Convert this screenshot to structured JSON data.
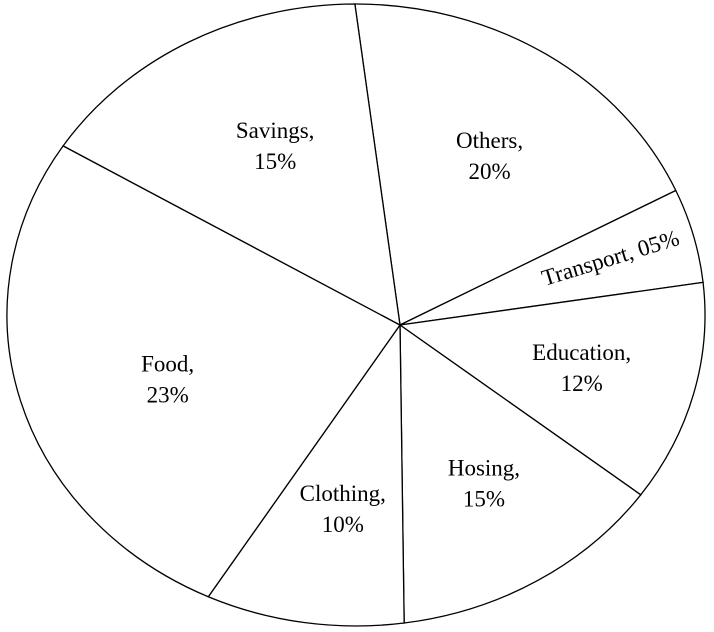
{
  "chart_data": {
    "type": "pie",
    "categories": [
      "Others,",
      "Transport,",
      "Education,",
      "Hosing,",
      "Clothing,",
      "Food,",
      "Savings,"
    ],
    "values": [
      20,
      5,
      12,
      15,
      10,
      23,
      15
    ],
    "value_labels": [
      "20%",
      "05%",
      "12%",
      "15%",
      "10%",
      "23%",
      "15%"
    ],
    "color": "#ffffff"
  }
}
